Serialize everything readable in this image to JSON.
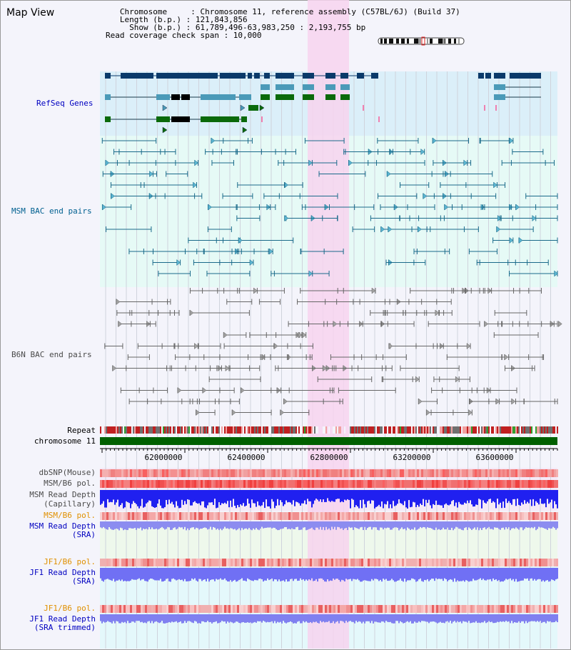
{
  "map": {
    "title": "Map View",
    "info": [
      "   Chromosome     : Chromosome 11, reference assembly (C57BL/6J) (Build 37)",
      "   Length (b.p.) : 121,843,856",
      "     Show (b.p.) : 61,789,496-63,983,250 : 2,193,755 bp",
      "Read coverage check span : 10,000"
    ]
  },
  "tracks": {
    "refseq": "RefSeq Genes",
    "msm_bac": "MSM BAC end pairs",
    "b6n_bac": "B6N BAC end pairs",
    "repeat": "Repeat",
    "chromosome": "chromosome 11",
    "dbsnp": "dbSNP(Mouse)",
    "msm_b6_pol_1": "MSM/B6 pol.",
    "msm_read_depth_cap_1": "MSM Read Depth",
    "msm_read_depth_cap_2": "(Capillary)",
    "msm_b6_pol_2": "MSM/B6 pol.",
    "msm_read_depth_sra_1": "MSM Read Depth",
    "msm_read_depth_sra_2": "(SRA)",
    "jf1_b6_pol": "JF1/B6 pol.",
    "jf1_read_depth_1": "JF1 Read Depth",
    "jf1_read_depth_2": "(SRA)",
    "jf1_b6_pol_2": "JF1/B6 pol.",
    "jf1_read_depth_trim_1": "JF1 Read Depth",
    "jf1_read_depth_trim_2": "(SRA trimmed)"
  },
  "axis": {
    "ticks": [
      "62000000",
      "62400000",
      "62800000",
      "63200000",
      "63600000"
    ]
  },
  "colors": {
    "label_blue": "#0000c0",
    "label_teal": "#006090",
    "label_gray": "#4a4a4a",
    "label_orange": "#e09000",
    "highlight": "#f7d3ee",
    "refseq_bg": "#dbeff9",
    "bac_bg": "#e6faf6",
    "chromosome": "#006000"
  }
}
